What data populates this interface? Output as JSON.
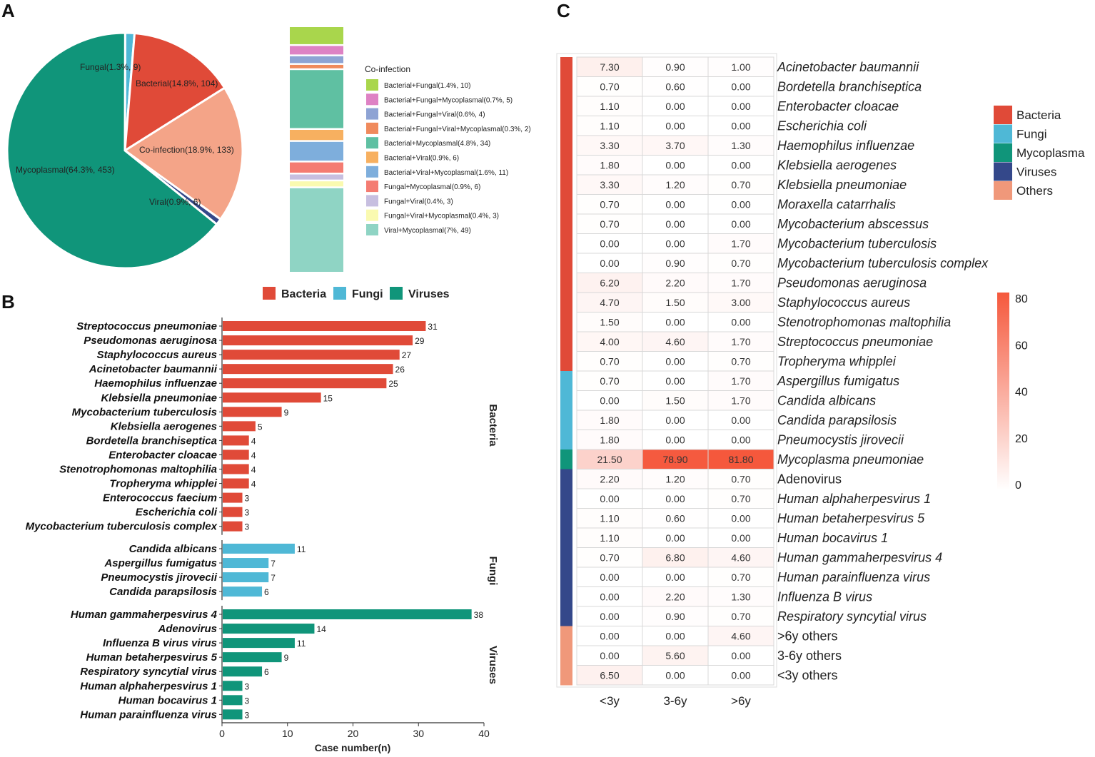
{
  "panels": {
    "a": "A",
    "b": "B",
    "c": "C"
  },
  "colors": {
    "bacteria": "#e04a38",
    "fungi": "#4fb8d6",
    "mycoplasma": "#10957a",
    "viruses": "#34488a",
    "others": "#f0987a",
    "coinfection": "#f4a488",
    "heat_high": "#f5583c"
  },
  "chart_data": [
    {
      "id": "pie",
      "type": "pie",
      "slices": [
        {
          "name": "Fungal",
          "label": "Fungal(1.3%, 9)",
          "value": 9,
          "color": "#4fb8d6"
        },
        {
          "name": "Bacterial",
          "label": "Bacterial(14.8%, 104)",
          "value": 104,
          "color": "#e04a38"
        },
        {
          "name": "Co-infection",
          "label": "Co-infection(18.9%, 133)",
          "value": 133,
          "color": "#f4a488"
        },
        {
          "name": "Viral",
          "label": "Viral(0.9%, 6)",
          "value": 6,
          "color": "#34488a"
        },
        {
          "name": "Mycoplasmal",
          "label": "Mycoplasmal(64.3%, 453)",
          "value": 453,
          "color": "#10957a"
        }
      ]
    },
    {
      "id": "coinfection-stack",
      "type": "bar",
      "legend_title": "Co-infection",
      "segments": [
        {
          "label": "Bacterial+Fungal(1.4%, 10)",
          "value": 10,
          "color": "#a9d64c"
        },
        {
          "label": "Bacterial+Fungal+Mycoplasmal(0.7%, 5)",
          "value": 5,
          "color": "#de82c4"
        },
        {
          "label": "Bacterial+Fungal+Viral(0.6%, 4)",
          "value": 4,
          "color": "#8ea3d4"
        },
        {
          "label": "Bacterial+Fungal+Viral+Mycoplasmal(0.3%, 2)",
          "value": 2,
          "color": "#f08a5c"
        },
        {
          "label": "Bacterial+Mycoplasmal(4.8%, 34)",
          "value": 34,
          "color": "#5fc0a2"
        },
        {
          "label": "Bacterial+Viral(0.9%, 6)",
          "value": 6,
          "color": "#f7b060"
        },
        {
          "label": "Bacterial+Viral+Mycoplasmal(1.6%, 11)",
          "value": 11,
          "color": "#7eaedc"
        },
        {
          "label": "Fungal+Mycoplasmal(0.9%, 6)",
          "value": 6,
          "color": "#f47c72"
        },
        {
          "label": "Fungal+Viral(0.4%, 3)",
          "value": 3,
          "color": "#c7bfe0"
        },
        {
          "label": "Fungal+Viral+Mycoplasmal(0.4%, 3)",
          "value": 3,
          "color": "#fafab0"
        },
        {
          "label": "Viral+Mycoplasmal(7%, 49)",
          "value": 49,
          "color": "#8fd4c4"
        }
      ]
    },
    {
      "id": "pathogen-bars",
      "type": "bar",
      "orientation": "horizontal",
      "legend": [
        "Bacteria",
        "Fungi",
        "Viruses"
      ],
      "xlabel": "Case number(n)",
      "xlim": [
        0,
        40
      ],
      "xticks": [
        0,
        10,
        20,
        30,
        40
      ],
      "groups": [
        {
          "name": "Bacteria",
          "color": "#e04a38",
          "items": [
            {
              "label": "Streptococcus pneumoniae",
              "value": 31
            },
            {
              "label": "Pseudomonas aeruginosa",
              "value": 29
            },
            {
              "label": "Staphylococcus aureus",
              "value": 27
            },
            {
              "label": "Acinetobacter baumannii",
              "value": 26
            },
            {
              "label": "Haemophilus influenzae",
              "value": 25
            },
            {
              "label": "Klebsiella pneumoniae",
              "value": 15
            },
            {
              "label": "Mycobacterium tuberculosis",
              "value": 9
            },
            {
              "label": "Klebsiella aerogenes",
              "value": 5
            },
            {
              "label": "Bordetella branchiseptica",
              "value": 4
            },
            {
              "label": "Enterobacter cloacae",
              "value": 4
            },
            {
              "label": "Stenotrophomonas maltophilia",
              "value": 4
            },
            {
              "label": "Tropheryma whipplei",
              "value": 4
            },
            {
              "label": "Enterococcus faecium",
              "value": 3
            },
            {
              "label": "Escherichia coli",
              "value": 3
            },
            {
              "label": "Mycobacterium tuberculosis complex",
              "value": 3
            }
          ]
        },
        {
          "name": "Fungi",
          "color": "#4fb8d6",
          "items": [
            {
              "label": "Candida albicans",
              "value": 11
            },
            {
              "label": "Aspergillus fumigatus",
              "value": 7
            },
            {
              "label": "Pneumocystis jirovecii",
              "value": 7
            },
            {
              "label": "Candida parapsilosis",
              "value": 6
            }
          ]
        },
        {
          "name": "Viruses",
          "color": "#10957a",
          "items": [
            {
              "label": "Human gammaherpesvirus 4",
              "value": 38
            },
            {
              "label": "Adenovirus",
              "value": 14
            },
            {
              "label": "Influenza B virus virus",
              "value": 11
            },
            {
              "label": "Human betaherpesvirus 5",
              "value": 9
            },
            {
              "label": "Respiratory syncytial virus",
              "value": 6
            },
            {
              "label": "Human alphaherpesvirus 1",
              "value": 3
            },
            {
              "label": "Human bocavirus 1",
              "value": 3
            },
            {
              "label": "Human parainfluenza virus",
              "value": 3
            }
          ]
        }
      ]
    },
    {
      "id": "heatmap",
      "type": "heatmap",
      "columns": [
        "<3y",
        "3-6y",
        ">6y"
      ],
      "color_scale": {
        "min": 0,
        "max": 80,
        "ticks": [
          80,
          60,
          40,
          20,
          0
        ]
      },
      "categories_legend": [
        {
          "name": "Bacteria",
          "color": "#e04a38"
        },
        {
          "name": "Fungi",
          "color": "#4fb8d6"
        },
        {
          "name": "Mycoplasma",
          "color": "#10957a"
        },
        {
          "name": "Viruses",
          "color": "#34488a"
        },
        {
          "name": "Others",
          "color": "#f0987a"
        }
      ],
      "rows": [
        {
          "label": "Acinetobacter baumannii",
          "cat": "Bacteria",
          "italic": true,
          "values": [
            "7.30",
            "0.90",
            "1.00"
          ]
        },
        {
          "label": "Bordetella branchiseptica",
          "cat": "Bacteria",
          "italic": true,
          "values": [
            "0.70",
            "0.60",
            "0.00"
          ]
        },
        {
          "label": "Enterobacter cloacae",
          "cat": "Bacteria",
          "italic": true,
          "values": [
            "1.10",
            "0.00",
            "0.00"
          ]
        },
        {
          "label": "Escherichia coli",
          "cat": "Bacteria",
          "italic": true,
          "values": [
            "1.10",
            "0.00",
            "0.00"
          ]
        },
        {
          "label": "Haemophilus influenzae",
          "cat": "Bacteria",
          "italic": true,
          "values": [
            "3.30",
            "3.70",
            "1.30"
          ]
        },
        {
          "label": "Klebsiella aerogenes",
          "cat": "Bacteria",
          "italic": true,
          "values": [
            "1.80",
            "0.00",
            "0.00"
          ]
        },
        {
          "label": "Klebsiella pneumoniae",
          "cat": "Bacteria",
          "italic": true,
          "values": [
            "3.30",
            "1.20",
            "0.70"
          ]
        },
        {
          "label": "Moraxella catarrhalis",
          "cat": "Bacteria",
          "italic": true,
          "values": [
            "0.70",
            "0.00",
            "0.00"
          ]
        },
        {
          "label": "Mycobacterium abscessus",
          "cat": "Bacteria",
          "italic": true,
          "values": [
            "0.70",
            "0.00",
            "0.00"
          ]
        },
        {
          "label": "Mycobacterium tuberculosis",
          "cat": "Bacteria",
          "italic": true,
          "values": [
            "0.00",
            "0.00",
            "1.70"
          ]
        },
        {
          "label": "Mycobacterium tuberculosis complex",
          "cat": "Bacteria",
          "italic": true,
          "values": [
            "0.00",
            "0.90",
            "0.70"
          ]
        },
        {
          "label": "Pseudomonas aeruginosa",
          "cat": "Bacteria",
          "italic": true,
          "values": [
            "6.20",
            "2.20",
            "1.70"
          ]
        },
        {
          "label": "Staphylococcus aureus",
          "cat": "Bacteria",
          "italic": true,
          "values": [
            "4.70",
            "1.50",
            "3.00"
          ]
        },
        {
          "label": "Stenotrophomonas maltophilia",
          "cat": "Bacteria",
          "italic": true,
          "values": [
            "1.50",
            "0.00",
            "0.00"
          ]
        },
        {
          "label": "Streptococcus pneumoniae",
          "cat": "Bacteria",
          "italic": true,
          "values": [
            "4.00",
            "4.60",
            "1.70"
          ]
        },
        {
          "label": "Tropheryma whipplei",
          "cat": "Bacteria",
          "italic": true,
          "values": [
            "0.70",
            "0.00",
            "0.70"
          ]
        },
        {
          "label": "Aspergillus fumigatus",
          "cat": "Fungi",
          "italic": true,
          "values": [
            "0.70",
            "0.00",
            "1.70"
          ]
        },
        {
          "label": "Candida albicans",
          "cat": "Fungi",
          "italic": true,
          "values": [
            "0.00",
            "1.50",
            "1.70"
          ]
        },
        {
          "label": "Candida parapsilosis",
          "cat": "Fungi",
          "italic": true,
          "values": [
            "1.80",
            "0.00",
            "0.00"
          ]
        },
        {
          "label": "Pneumocystis jirovecii",
          "cat": "Fungi",
          "italic": true,
          "values": [
            "1.80",
            "0.00",
            "0.00"
          ]
        },
        {
          "label": "Mycoplasma pneumoniae",
          "cat": "Mycoplasma",
          "italic": true,
          "values": [
            "21.50",
            "78.90",
            "81.80"
          ]
        },
        {
          "label": "Adenovirus",
          "cat": "Viruses",
          "italic": false,
          "values": [
            "2.20",
            "1.20",
            "0.70"
          ]
        },
        {
          "label": "Human alphaherpesvirus 1",
          "cat": "Viruses",
          "italic": true,
          "values": [
            "0.00",
            "0.00",
            "0.70"
          ]
        },
        {
          "label": "Human betaherpesvirus 5",
          "cat": "Viruses",
          "italic": true,
          "values": [
            "1.10",
            "0.60",
            "0.00"
          ]
        },
        {
          "label": "Human bocavirus 1",
          "cat": "Viruses",
          "italic": true,
          "values": [
            "1.10",
            "0.00",
            "0.00"
          ]
        },
        {
          "label": "Human gammaherpesvirus 4",
          "cat": "Viruses",
          "italic": true,
          "values": [
            "0.70",
            "6.80",
            "4.60"
          ]
        },
        {
          "label": "Human parainfluenza virus",
          "cat": "Viruses",
          "italic": true,
          "values": [
            "0.00",
            "0.00",
            "0.70"
          ]
        },
        {
          "label": "Influenza B virus",
          "cat": "Viruses",
          "italic": true,
          "values": [
            "0.00",
            "2.20",
            "1.30"
          ]
        },
        {
          "label": "Respiratory syncytial virus",
          "cat": "Viruses",
          "italic": true,
          "values": [
            "0.00",
            "0.90",
            "0.70"
          ]
        },
        {
          "label": ">6y others",
          "cat": "Others",
          "italic": false,
          "values": [
            "0.00",
            "0.00",
            "4.60"
          ]
        },
        {
          "label": "3-6y others",
          "cat": "Others",
          "italic": false,
          "values": [
            "0.00",
            "5.60",
            "0.00"
          ]
        },
        {
          "label": "<3y others",
          "cat": "Others",
          "italic": false,
          "values": [
            "6.50",
            "0.00",
            "0.00"
          ]
        }
      ]
    }
  ]
}
